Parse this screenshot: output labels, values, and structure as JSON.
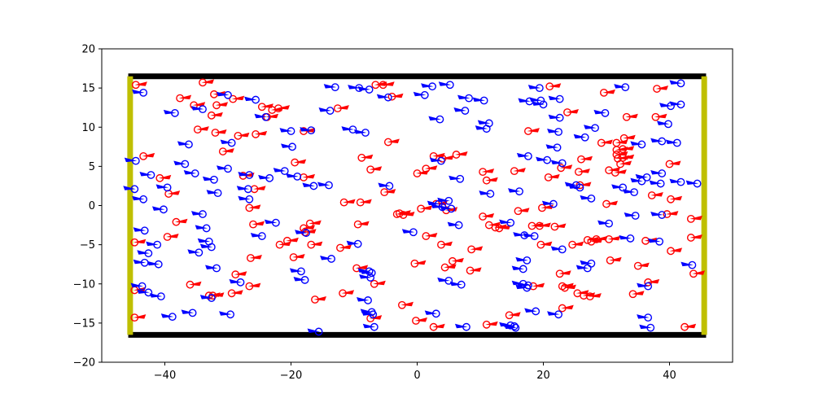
{
  "chart_data": {
    "type": "scatter",
    "title": "",
    "xlabel": "",
    "ylabel": "",
    "xlim": [
      -50,
      50
    ],
    "ylim": [
      -20,
      20
    ],
    "x_ticks": [
      -40,
      -20,
      0,
      20,
      40
    ],
    "y_ticks": [
      -20,
      -15,
      -10,
      -5,
      0,
      5,
      10,
      15,
      20
    ],
    "x_tick_labels": [
      "−40",
      "−20",
      "0",
      "20",
      "40"
    ],
    "y_tick_labels": [
      "−20",
      "−15",
      "−10",
      "−5",
      "0",
      "5",
      "10",
      "15",
      "20"
    ],
    "grid": false,
    "walls": [
      {
        "kind": "horizontal",
        "y": 16.5,
        "x_range": [
          -45.8,
          45.8
        ],
        "color": "#000000"
      },
      {
        "kind": "horizontal",
        "y": -16.5,
        "x_range": [
          -45.8,
          45.8
        ],
        "color": "#000000"
      },
      {
        "kind": "vertical",
        "x": -45.5,
        "y_range": [
          -16.5,
          16.5
        ],
        "color": "#bfbf00"
      },
      {
        "kind": "vertical",
        "x": 45.5,
        "y_range": [
          -16.5,
          16.5
        ],
        "color": "#bfbf00"
      }
    ],
    "series": [
      {
        "color": "#ff0000",
        "direction": "left",
        "points": [
          [
            -44.6,
            15.4
          ],
          [
            -43.4,
            6.3
          ],
          [
            -44.8,
            -4.7
          ],
          [
            -44.8,
            -10.8
          ],
          [
            -44.8,
            -14.3
          ],
          [
            -40.8,
            3.5
          ],
          [
            -39.4,
            1.5
          ],
          [
            -39.6,
            -4.0
          ],
          [
            -38.2,
            -2.1
          ],
          [
            -37.6,
            13.7
          ],
          [
            -36.0,
            -10.1
          ],
          [
            -35.4,
            12.8
          ],
          [
            -34.8,
            9.7
          ],
          [
            -34.0,
            15.7
          ],
          [
            -33.0,
            -11.5
          ],
          [
            -32.4,
            -11.5
          ],
          [
            -32.6,
            11.5
          ],
          [
            -32.2,
            14.2
          ],
          [
            -32.0,
            9.3
          ],
          [
            -31.8,
            12.8
          ],
          [
            -30.8,
            6.9
          ],
          [
            -29.2,
            13.6
          ],
          [
            -29.4,
            -11.2
          ],
          [
            -28.8,
            -8.8
          ],
          [
            -28.4,
            8.9
          ],
          [
            -27.6,
            3.8
          ],
          [
            -26.6,
            -0.3
          ],
          [
            -26.4,
            -6.7
          ],
          [
            -26.6,
            -10.3
          ],
          [
            -26.0,
            -2.4
          ],
          [
            -25.8,
            2.1
          ],
          [
            -25.6,
            9.1
          ],
          [
            -24.6,
            12.6
          ],
          [
            -23.8,
            11.3
          ],
          [
            -23.0,
            12.2
          ],
          [
            -22.0,
            12.4
          ],
          [
            -21.8,
            -5.0
          ],
          [
            -20.6,
            -4.5
          ],
          [
            -19.6,
            -6.6
          ],
          [
            -19.4,
            5.5
          ],
          [
            -18.0,
            9.5
          ],
          [
            -18.0,
            -2.9
          ],
          [
            -17.8,
            -3.4
          ],
          [
            -18.0,
            3.6
          ],
          [
            -17.0,
            -2.3
          ],
          [
            -16.8,
            -5.0
          ],
          [
            -16.2,
            -12.0
          ],
          [
            -12.6,
            12.4
          ],
          [
            -11.6,
            0.4
          ],
          [
            -12.2,
            -5.4
          ],
          [
            -11.8,
            -11.2
          ],
          [
            -9.6,
            -8.0
          ],
          [
            -9.4,
            -2.4
          ],
          [
            -9.0,
            0.4
          ],
          [
            -8.8,
            6.1
          ],
          [
            -7.4,
            4.6
          ],
          [
            -7.4,
            -14.4
          ],
          [
            -6.8,
            -10.0
          ],
          [
            -6.6,
            15.4
          ],
          [
            -5.4,
            15.4
          ],
          [
            -5.2,
            1.7
          ],
          [
            -4.6,
            8.1
          ],
          [
            -4.0,
            13.9
          ],
          [
            -3.2,
            -1.1
          ],
          [
            -2.8,
            -1.0
          ],
          [
            -2.2,
            -1.2
          ],
          [
            -2.4,
            -12.7
          ],
          [
            -0.4,
            -7.4
          ],
          [
            -0.2,
            -14.7
          ],
          [
            0.0,
            4.1
          ],
          [
            0.6,
            -0.4
          ],
          [
            1.4,
            4.7
          ],
          [
            1.4,
            -3.9
          ],
          [
            2.6,
            -15.5
          ],
          [
            2.6,
            6.3
          ],
          [
            3.0,
            0.2
          ],
          [
            3.8,
            -5.0
          ],
          [
            4.0,
            6.0
          ],
          [
            4.4,
            -7.9
          ],
          [
            4.6,
            -0.6
          ],
          [
            5.6,
            -7.1
          ],
          [
            6.2,
            6.5
          ],
          [
            8.4,
            -8.3
          ],
          [
            8.6,
            -5.6
          ],
          [
            10.4,
            4.3
          ],
          [
            10.4,
            -1.4
          ],
          [
            11.0,
            -15.2
          ],
          [
            11.0,
            3.2
          ],
          [
            11.4,
            -2.5
          ],
          [
            12.4,
            -2.8
          ],
          [
            13.0,
            -2.9
          ],
          [
            14.6,
            -14.0
          ],
          [
            15.4,
            4.4
          ],
          [
            16.0,
            -0.7
          ],
          [
            17.6,
            9.5
          ],
          [
            18.2,
            -2.6
          ],
          [
            18.4,
            -10.3
          ],
          [
            19.4,
            -2.6
          ],
          [
            19.6,
            -5.0
          ],
          [
            19.8,
            -0.3
          ],
          [
            20.8,
            3.6
          ],
          [
            21.0,
            15.2
          ],
          [
            21.8,
            -2.7
          ],
          [
            22.6,
            -8.7
          ],
          [
            22.8,
            4.8
          ],
          [
            23.0,
            -10.3
          ],
          [
            23.0,
            -13.1
          ],
          [
            23.4,
            -10.5
          ],
          [
            23.8,
            11.9
          ],
          [
            24.6,
            -5.0
          ],
          [
            25.4,
            -11.2
          ],
          [
            25.6,
            4.3
          ],
          [
            25.8,
            2.6
          ],
          [
            26.0,
            5.9
          ],
          [
            26.4,
            -11.5
          ],
          [
            27.0,
            -4.4
          ],
          [
            27.4,
            -11.6
          ],
          [
            27.6,
            -4.6
          ],
          [
            28.4,
            -4.3
          ],
          [
            29.2,
            8.0
          ],
          [
            29.6,
            14.4
          ],
          [
            30.0,
            0.2
          ],
          [
            30.4,
            -4.3
          ],
          [
            30.4,
            4.5
          ],
          [
            30.6,
            -7.0
          ],
          [
            31.4,
            4.2
          ],
          [
            31.6,
            8.0
          ],
          [
            31.6,
            7.1
          ],
          [
            31.6,
            6.5
          ],
          [
            31.8,
            6.0
          ],
          [
            32.2,
            5.3
          ],
          [
            32.6,
            7.2
          ],
          [
            32.6,
            6.1
          ],
          [
            32.8,
            8.6
          ],
          [
            33.2,
            11.3
          ],
          [
            34.2,
            -11.3
          ],
          [
            35.0,
            -7.7
          ],
          [
            36.2,
            -4.5
          ],
          [
            36.6,
            -9.8
          ],
          [
            37.8,
            11.3
          ],
          [
            37.2,
            1.3
          ],
          [
            38.0,
            14.9
          ],
          [
            39.6,
            -1.1
          ],
          [
            40.2,
            0.8
          ],
          [
            40.2,
            -5.8
          ],
          [
            40.0,
            5.3
          ],
          [
            43.4,
            -1.7
          ],
          [
            43.4,
            -4.1
          ],
          [
            43.8,
            -8.7
          ],
          [
            42.4,
            -15.5
          ]
        ]
      },
      {
        "color": "#0000ff",
        "direction": "right",
        "points": [
          [
            -44.6,
            5.7
          ],
          [
            -43.4,
            14.4
          ],
          [
            -44.8,
            2.1
          ],
          [
            -43.2,
            -3.2
          ],
          [
            -43.4,
            0.8
          ],
          [
            -43.6,
            -10.3
          ],
          [
            -43.2,
            -7.3
          ],
          [
            -42.6,
            -11.1
          ],
          [
            -42.6,
            -6.1
          ],
          [
            -42.2,
            3.9
          ],
          [
            -41.0,
            -7.5
          ],
          [
            -41.2,
            -5.0
          ],
          [
            -40.6,
            -11.6
          ],
          [
            -40.2,
            -0.5
          ],
          [
            -39.6,
            2.3
          ],
          [
            -38.8,
            -14.2
          ],
          [
            -38.4,
            11.8
          ],
          [
            -36.8,
            5.3
          ],
          [
            -36.2,
            7.8
          ],
          [
            -35.6,
            -13.7
          ],
          [
            -35.2,
            4.1
          ],
          [
            -34.6,
            -6.0
          ],
          [
            -34.0,
            12.3
          ],
          [
            -34.0,
            -1.1
          ],
          [
            -33.4,
            -2.9
          ],
          [
            -33.0,
            -4.6
          ],
          [
            -32.6,
            -5.3
          ],
          [
            -32.6,
            -11.8
          ],
          [
            -32.2,
            3.3
          ],
          [
            -31.8,
            -8.0
          ],
          [
            -31.6,
            1.6
          ],
          [
            -30.0,
            14.1
          ],
          [
            -30.0,
            4.7
          ],
          [
            -29.6,
            -13.9
          ],
          [
            -29.4,
            8.0
          ],
          [
            -28.0,
            -9.8
          ],
          [
            -26.8,
            2.1
          ],
          [
            -26.6,
            3.9
          ],
          [
            -26.6,
            0.8
          ],
          [
            -25.6,
            13.5
          ],
          [
            -24.6,
            -3.9
          ],
          [
            -24.0,
            11.3
          ],
          [
            -23.4,
            3.5
          ],
          [
            -22.4,
            -2.2
          ],
          [
            -21.0,
            4.4
          ],
          [
            -20.0,
            9.5
          ],
          [
            -19.8,
            7.5
          ],
          [
            -19.0,
            3.7
          ],
          [
            -18.4,
            -8.4
          ],
          [
            -17.8,
            -9.5
          ],
          [
            -17.6,
            -3.5
          ],
          [
            -16.8,
            9.6
          ],
          [
            -16.4,
            2.5
          ],
          [
            -15.6,
            -16.1
          ],
          [
            -14.0,
            2.6
          ],
          [
            -13.8,
            12.1
          ],
          [
            -13.6,
            -6.8
          ],
          [
            -13.0,
            15.1
          ],
          [
            -10.2,
            9.7
          ],
          [
            -9.4,
            -4.9
          ],
          [
            -9.2,
            15.0
          ],
          [
            -8.2,
            9.3
          ],
          [
            -7.6,
            14.8
          ],
          [
            -7.8,
            -12.1
          ],
          [
            -7.6,
            -8.4
          ],
          [
            -7.4,
            -9.2
          ],
          [
            -7.2,
            -8.6
          ],
          [
            -7.2,
            -13.6
          ],
          [
            -7.0,
            -13.9
          ],
          [
            -6.8,
            -15.5
          ],
          [
            -4.6,
            13.8
          ],
          [
            -4.4,
            2.5
          ],
          [
            -0.6,
            -3.4
          ],
          [
            1.2,
            14.1
          ],
          [
            2.4,
            15.2
          ],
          [
            3.0,
            -13.8
          ],
          [
            3.4,
            0.2
          ],
          [
            3.6,
            11.0
          ],
          [
            3.8,
            5.7
          ],
          [
            4.0,
            -0.2
          ],
          [
            5.0,
            -9.6
          ],
          [
            5.0,
            0.6
          ],
          [
            5.2,
            15.4
          ],
          [
            5.4,
            -0.4
          ],
          [
            6.6,
            -2.5
          ],
          [
            6.8,
            3.4
          ],
          [
            7.0,
            -10.1
          ],
          [
            7.6,
            12.1
          ],
          [
            7.8,
            -15.5
          ],
          [
            8.2,
            13.7
          ],
          [
            10.6,
            13.4
          ],
          [
            11.0,
            9.8
          ],
          [
            11.4,
            10.5
          ],
          [
            11.6,
            1.5
          ],
          [
            14.8,
            -2.2
          ],
          [
            14.8,
            -15.3
          ],
          [
            15.4,
            -15.4
          ],
          [
            15.6,
            -15.6
          ],
          [
            16.2,
            1.8
          ],
          [
            16.8,
            -10.0
          ],
          [
            16.8,
            -8.1
          ],
          [
            17.0,
            -3.8
          ],
          [
            17.4,
            -7.0
          ],
          [
            17.4,
            -10.5
          ],
          [
            17.6,
            -10.2
          ],
          [
            17.6,
            6.3
          ],
          [
            17.8,
            13.3
          ],
          [
            18.6,
            -3.9
          ],
          [
            18.8,
            -13.5
          ],
          [
            19.6,
            13.4
          ],
          [
            19.4,
            15.0
          ],
          [
            20.0,
            12.9
          ],
          [
            20.6,
            5.8
          ],
          [
            21.6,
            0.2
          ],
          [
            22.2,
            7.4
          ],
          [
            22.4,
            -13.9
          ],
          [
            22.4,
            9.4
          ],
          [
            22.6,
            11.2
          ],
          [
            22.6,
            13.6
          ],
          [
            23.0,
            -5.6
          ],
          [
            23.0,
            5.4
          ],
          [
            25.2,
            2.6
          ],
          [
            25.8,
            2.3
          ],
          [
            26.6,
            8.7
          ],
          [
            27.0,
            -8.0
          ],
          [
            27.6,
            -7.4
          ],
          [
            27.6,
            0.9
          ],
          [
            28.2,
            9.9
          ],
          [
            29.8,
            11.8
          ],
          [
            30.4,
            -2.3
          ],
          [
            32.6,
            2.3
          ],
          [
            33.0,
            15.1
          ],
          [
            33.8,
            -4.2
          ],
          [
            34.4,
            1.7
          ],
          [
            34.6,
            -1.3
          ],
          [
            35.6,
            7.8
          ],
          [
            35.6,
            3.1
          ],
          [
            36.4,
            3.6
          ],
          [
            36.6,
            -10.3
          ],
          [
            36.6,
            -14.3
          ],
          [
            37.0,
            -15.6
          ],
          [
            38.4,
            -4.6
          ],
          [
            38.6,
            2.8
          ],
          [
            38.8,
            -1.2
          ],
          [
            38.8,
            8.2
          ],
          [
            38.8,
            4.1
          ],
          [
            39.8,
            10.4
          ],
          [
            40.2,
            12.7
          ],
          [
            41.2,
            8.0
          ],
          [
            41.8,
            3.0
          ],
          [
            41.8,
            15.6
          ],
          [
            41.8,
            12.9
          ],
          [
            43.6,
            -7.6
          ],
          [
            44.4,
            2.8
          ]
        ]
      }
    ]
  }
}
